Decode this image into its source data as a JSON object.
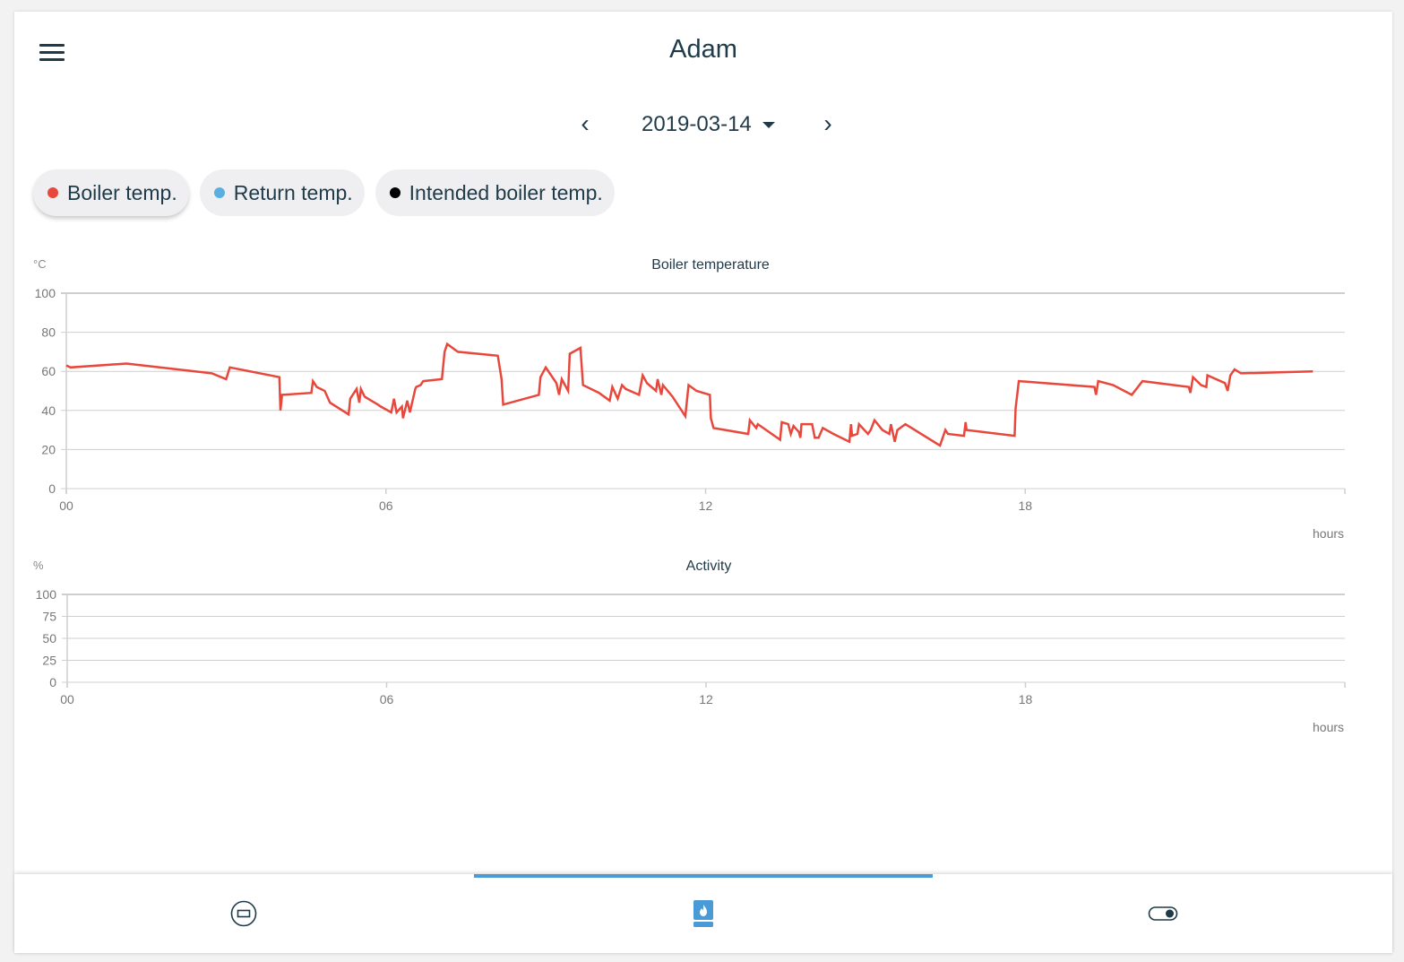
{
  "header": {
    "title": "Adam",
    "menu_icon": "hamburger-menu-icon"
  },
  "date_nav": {
    "prev_icon": "chevron-left-icon",
    "next_icon": "chevron-right-icon",
    "prev_label": "‹",
    "next_label": "›",
    "selected_date": "2019-03-14",
    "dropdown_icon": "caret-down-icon"
  },
  "legend_chips": [
    {
      "label": "Boiler temp.",
      "color": "#e8483c",
      "active": true
    },
    {
      "label": "Return temp.",
      "color": "#5aafe0",
      "active": false
    },
    {
      "label": "Intended boiler temp.",
      "color": "#000000",
      "active": false
    }
  ],
  "charts": {
    "boiler": {
      "title": "Boiler temperature",
      "unit": "°C",
      "xlabel": "hours"
    },
    "activity": {
      "title": "Activity",
      "unit": "%",
      "xlabel": "hours"
    }
  },
  "bottom_nav": [
    {
      "name": "thermostat-tab",
      "icon": "thermostat-icon",
      "active": false
    },
    {
      "name": "boiler-tab",
      "icon": "boiler-flame-icon",
      "active": true,
      "color": "#4a9ad6"
    },
    {
      "name": "switch-tab",
      "icon": "toggle-switch-icon",
      "active": false
    }
  ],
  "chart_data": [
    {
      "type": "line",
      "title": "Boiler temperature",
      "xlabel": "hours",
      "ylabel": "°C",
      "x_ticks": [
        "00",
        "06",
        "12",
        "18"
      ],
      "y_ticks": [
        0,
        20,
        40,
        60,
        80,
        100
      ],
      "xlim": [
        0,
        24
      ],
      "ylim": [
        0,
        100
      ],
      "grid": true,
      "series": [
        {
          "name": "Boiler temp.",
          "color": "#e8483c",
          "x": [
            0.0,
            0.08,
            1.13,
            2.73,
            3.0,
            3.07,
            4.0,
            4.02,
            4.05,
            4.6,
            4.63,
            4.7,
            4.85,
            4.95,
            5.3,
            5.33,
            5.45,
            5.5,
            5.53,
            5.6,
            5.85,
            5.9,
            6.1,
            6.15,
            6.2,
            6.3,
            6.32,
            6.4,
            6.45,
            6.55,
            6.57,
            6.65,
            6.7,
            7.05,
            7.1,
            7.15,
            7.35,
            8.1,
            8.17,
            8.2,
            8.87,
            8.9,
            9.0,
            9.2,
            9.25,
            9.3,
            9.32,
            9.42,
            9.45,
            9.65,
            9.7,
            10.0,
            10.2,
            10.25,
            10.35,
            10.43,
            10.5,
            10.75,
            10.82,
            10.9,
            11.07,
            11.1,
            11.17,
            11.2,
            11.38,
            11.62,
            11.68,
            11.83,
            12.08,
            12.1,
            12.15,
            12.8,
            12.83,
            12.95,
            12.98,
            13.4,
            13.43,
            13.55,
            13.6,
            13.65,
            13.75,
            13.78,
            13.8,
            14.0,
            14.05,
            14.12,
            14.2,
            14.4,
            14.7,
            14.73,
            14.75,
            14.85,
            14.88,
            15.05,
            15.1,
            15.17,
            15.32,
            15.45,
            15.48,
            15.55,
            15.6,
            15.75,
            16.4,
            16.5,
            16.55,
            16.85,
            16.88,
            16.9,
            17.8,
            17.82,
            17.88,
            19.3,
            19.33,
            19.37,
            19.65,
            20.0,
            20.2,
            21.07,
            21.1,
            21.15,
            21.3,
            21.4,
            21.42,
            21.75,
            21.8,
            21.85,
            21.93,
            22.05,
            23.4
          ],
          "values": [
            63,
            62,
            64,
            59,
            56,
            62,
            57,
            40,
            48,
            49,
            55,
            52,
            50,
            44,
            38,
            46,
            51,
            44,
            51,
            47,
            43,
            42,
            39,
            46,
            39,
            42,
            36,
            45,
            39,
            51,
            52,
            53,
            55,
            56,
            70,
            74,
            70,
            68,
            56,
            43,
            48,
            57,
            62,
            54,
            48,
            56,
            55,
            50,
            69,
            72,
            53,
            49,
            45,
            52,
            46,
            53,
            51,
            48,
            58,
            54,
            50,
            56,
            48,
            53,
            47,
            37,
            53,
            50,
            48,
            36,
            31,
            28,
            35,
            31,
            33,
            25,
            34,
            33,
            28,
            32,
            29,
            26,
            33,
            33,
            26,
            26,
            31,
            28,
            24,
            33,
            27,
            28,
            33,
            28,
            30,
            35,
            30,
            28,
            33,
            24,
            30,
            33,
            22,
            30,
            28,
            27,
            34,
            30,
            27,
            41,
            55,
            52,
            48,
            55,
            53,
            48,
            55,
            52,
            49,
            57,
            53,
            52,
            58,
            54,
            50,
            58,
            61,
            59,
            60
          ]
        },
        {
          "name": "Return temp.",
          "color": "#5aafe0",
          "x": [],
          "values": []
        },
        {
          "name": "Intended boiler temp.",
          "color": "#000000",
          "x": [],
          "values": []
        }
      ]
    },
    {
      "type": "bar",
      "title": "Activity",
      "xlabel": "hours",
      "ylabel": "%",
      "x_ticks": [
        "00",
        "06",
        "12",
        "18"
      ],
      "y_ticks": [
        0,
        25,
        50,
        75,
        100
      ],
      "xlim": [
        0,
        24
      ],
      "ylim": [
        0,
        100
      ],
      "grid": true,
      "series": []
    }
  ]
}
